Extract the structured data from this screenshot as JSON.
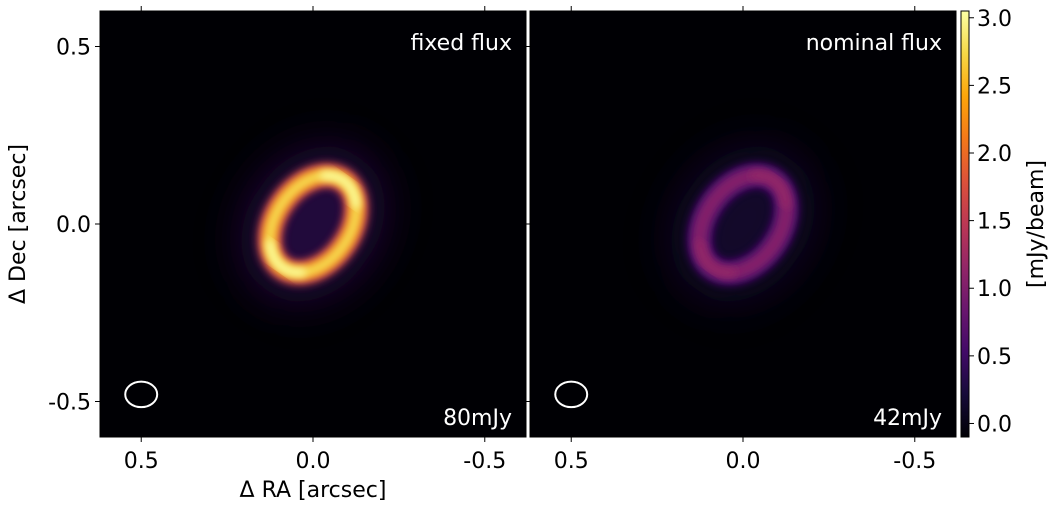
{
  "chart_data": {
    "type": "heatmap",
    "xlabel": "Δ RA [arcsec]",
    "ylabel": "Δ Dec [arcsec]",
    "xlim": [
      0.62,
      -0.62
    ],
    "ylim": [
      -0.6,
      0.6
    ],
    "x_ticks": [
      0.5,
      0.0,
      -0.5
    ],
    "x_tick_labels": [
      "0.5",
      "0.0",
      "-0.5"
    ],
    "y_ticks": [
      0.5,
      0.0,
      -0.5
    ],
    "y_tick_labels": [
      "0.5",
      "0.0",
      "-0.5"
    ],
    "panels": [
      {
        "label": "fixed flux",
        "flux_label": "80mJy",
        "ring": {
          "center": [
            0.0,
            0.0
          ],
          "semi_major": 0.15,
          "semi_minor": 0.105,
          "pa_deg": 35,
          "peak": 3.0
        }
      },
      {
        "label": "nominal flux",
        "flux_label": "42mJy",
        "ring": {
          "center": [
            0.0,
            0.0
          ],
          "semi_major": 0.15,
          "semi_minor": 0.105,
          "pa_deg": 35,
          "peak": 1.15
        }
      }
    ],
    "beam": {
      "center": [
        0.5,
        -0.48
      ],
      "major": 0.05,
      "minor": 0.04,
      "color": "#ffffff"
    },
    "colorbar": {
      "label": "[mJy/beam]",
      "range": [
        -0.1,
        3.05
      ],
      "ticks": [
        0.0,
        0.5,
        1.0,
        1.5,
        2.0,
        2.5,
        3.0
      ],
      "tick_labels": [
        "0.0",
        "0.5",
        "1.0",
        "1.5",
        "2.0",
        "2.5",
        "3.0"
      ],
      "colormap": "inferno"
    }
  }
}
